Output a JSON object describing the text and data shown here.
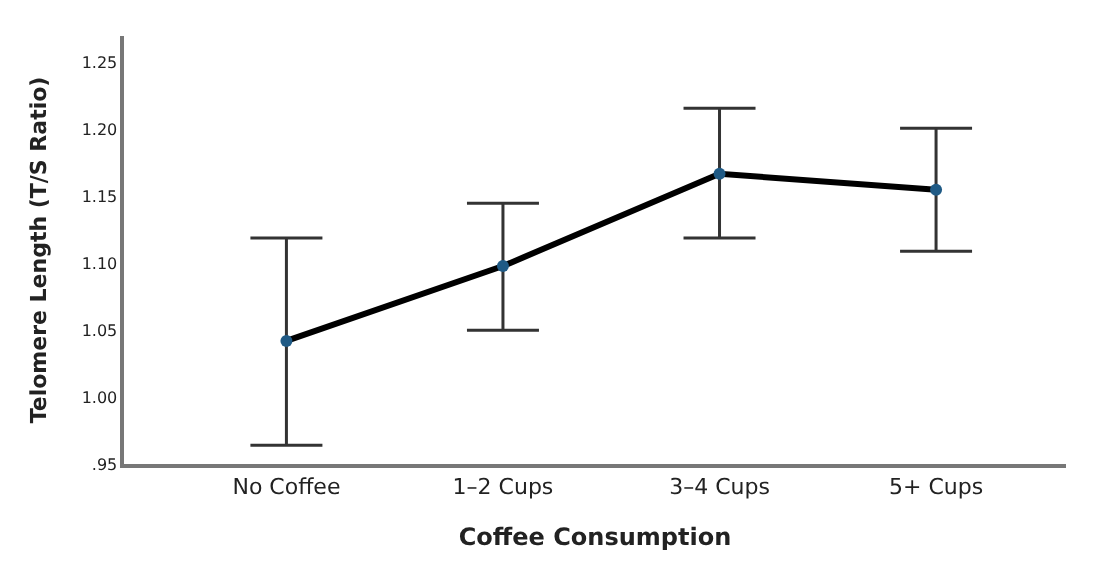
{
  "chart_data": {
    "type": "line",
    "xlabel": "Coffee Consumption",
    "ylabel": "Telomere Length (T/S Ratio)",
    "categories": [
      "No Coffee",
      "1–2 Cups",
      "3–4 Cups",
      "5+ Cups"
    ],
    "series": [
      {
        "color": "#000000",
        "colors": [
          "#1f5a85",
          "#1f5a85",
          "#1f5a85",
          "#1f5a85"
        ],
        "values": [
          1.042,
          1.098,
          1.167,
          1.155
        ],
        "errors": [
          [
            0.964,
            1.119
          ],
          [
            1.05,
            1.145
          ],
          [
            1.119,
            1.216
          ],
          [
            1.109,
            1.201
          ]
        ]
      }
    ],
    "ylim": [
      0.95,
      1.27
    ],
    "yticks": [
      {
        "value": 0.95,
        "label": ".95"
      },
      {
        "value": 1.0,
        "label": "1.00"
      },
      {
        "value": 1.05,
        "label": "1.05"
      },
      {
        "value": 1.1,
        "label": "1.10"
      },
      {
        "value": 1.15,
        "label": "1.15"
      },
      {
        "value": 1.2,
        "label": "1.20"
      },
      {
        "value": 1.25,
        "label": "1.25"
      }
    ],
    "marker": "circle",
    "line_style": "solid"
  }
}
